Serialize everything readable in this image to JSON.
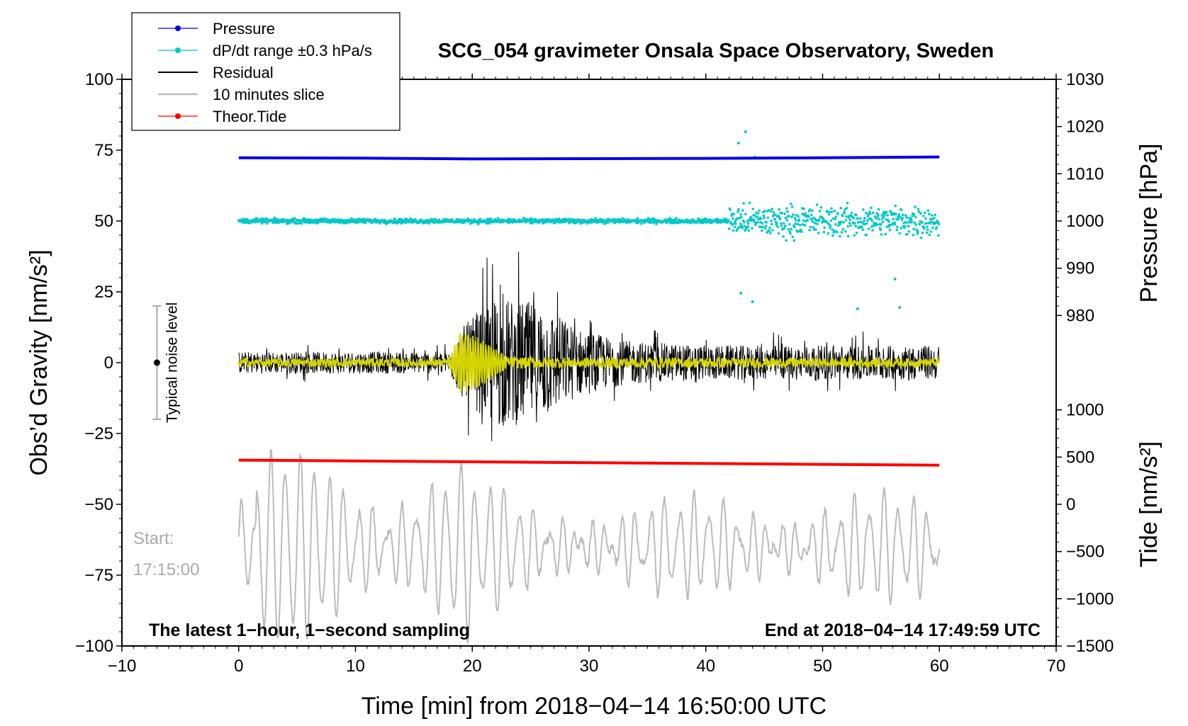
{
  "chart_data": {
    "type": "line",
    "title": "SCG_054 gravimeter Onsala Space Observatory, Sweden",
    "xlabel": "Time [min] from 2018−04−14 16:50:00 UTC",
    "ylabel_left": "Obs’d Gravity [nm/s²]",
    "ylabel_right_top": "Pressure [hPa]",
    "ylabel_right_bottom": "Tide [nm/s²]",
    "xlim": [
      -10,
      70
    ],
    "ylim_left": [
      -100,
      100
    ],
    "x_ticks": [
      "−10",
      "0",
      "10",
      "20",
      "30",
      "40",
      "50",
      "60",
      "70"
    ],
    "x_tick_values": [
      -10,
      0,
      10,
      20,
      30,
      40,
      50,
      60,
      70
    ],
    "y_left_ticks": [
      "100",
      "75",
      "50",
      "25",
      "0",
      "−25",
      "−50",
      "−75",
      "−100"
    ],
    "y_left_tick_values": [
      100,
      75,
      50,
      25,
      0,
      -25,
      -50,
      -75,
      -100
    ],
    "pressure_axis": {
      "ticks": [
        "1030",
        "1020",
        "1010",
        "1000",
        "990",
        "980"
      ],
      "values": [
        1030,
        1020,
        1010,
        1000,
        990,
        980
      ],
      "gravity_equiv": [
        100,
        83.33,
        66.67,
        50,
        33.33,
        16.67
      ]
    },
    "tide_axis": {
      "ticks": [
        "1000",
        "500",
        "0",
        "−500",
        "−1000",
        "−1500"
      ],
      "values": [
        1000,
        500,
        0,
        -500,
        -1000,
        -1500
      ],
      "gravity_equiv": [
        -16.67,
        -33.33,
        -50,
        -66.67,
        -83.33,
        -100
      ]
    },
    "legend": [
      {
        "label": "Pressure",
        "color": "#0000ee",
        "marker": true
      },
      {
        "label": "dP/dt range ±0.3 hPa/s",
        "color": "#00c8c8",
        "marker": true
      },
      {
        "label": "Residual",
        "color": "#000000",
        "marker": false
      },
      {
        "label": "10 minutes slice",
        "color": "#bbbbbb",
        "marker": false
      },
      {
        "label": "Theor.Tide",
        "color": "#ff0000",
        "marker": true
      }
    ],
    "series": [
      {
        "name": "Pressure",
        "color": "#0000ee",
        "x": [
          0,
          10,
          20,
          30,
          40,
          50,
          60
        ],
        "values": [
          72.3,
          72.2,
          71.9,
          72.0,
          72.1,
          72.3,
          72.6
        ]
      },
      {
        "name": "dP/dt range ±0.3 hPa/s",
        "color": "#00c8c8",
        "center": 50,
        "quiet_spread": 1.2,
        "active_from_min": 42,
        "active_spread": 8
      },
      {
        "name": "Residual",
        "color": "#000000",
        "center": 0,
        "envelope": [
          [
            0,
            7
          ],
          [
            18,
            7
          ],
          [
            19,
            22
          ],
          [
            22,
            42
          ],
          [
            26,
            38
          ],
          [
            29,
            22
          ],
          [
            33,
            14
          ],
          [
            40,
            11
          ],
          [
            60,
            11
          ]
        ]
      },
      {
        "name": "Residual (smoothed)",
        "color": "#d4d400",
        "center": 0,
        "envelope": [
          [
            0,
            1.5
          ],
          [
            18,
            1.5
          ],
          [
            19,
            11
          ],
          [
            20.5,
            9
          ],
          [
            23,
            2
          ],
          [
            60,
            1.5
          ]
        ]
      },
      {
        "name": "Theor.Tide",
        "color": "#ff0000",
        "x": [
          0,
          60
        ],
        "values": [
          -34.4,
          -36.2
        ]
      },
      {
        "name": "10 minutes slice",
        "color": "#bbbbbb",
        "x_range": [
          0,
          60
        ],
        "center": -65,
        "amplitude": 16
      }
    ],
    "noise_level": {
      "label": "Typical noise level",
      "x": -7,
      "range": [
        -20,
        20
      ],
      "center": 0
    },
    "annotations": {
      "start_label": "Start:",
      "start_time": "17:15:00",
      "bottom_left": "The latest 1−hour, 1−second sampling",
      "bottom_right": "End at 2018−04−14 17:49:59 UTC"
    }
  }
}
